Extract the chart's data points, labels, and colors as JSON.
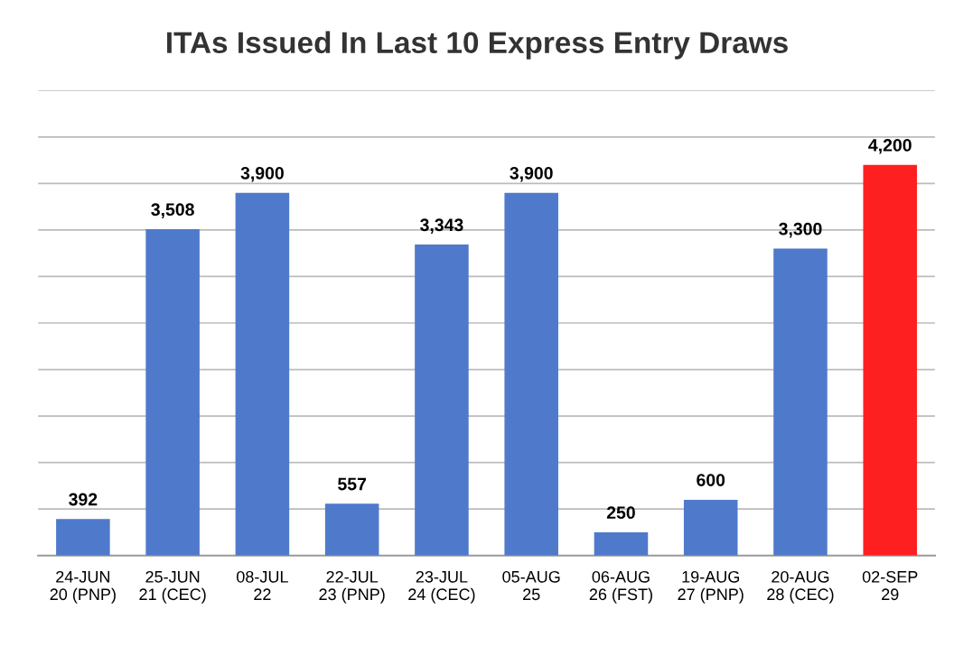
{
  "chart_data": {
    "type": "bar",
    "title": "ITAs Issued In Last 10 Express Entry Draws",
    "categories": [
      "24-JUN\n20 (PNP)",
      "25-JUN\n21 (CEC)",
      "08-JUL\n22",
      "22-JUL\n23 (PNP)",
      "23-JUL\n24 (CEC)",
      "05-AUG\n25",
      "06-AUG\n26 (FST)",
      "19-AUG\n27 (PNP)",
      "20-AUG\n28 (CEC)",
      "02-SEP\n29"
    ],
    "values": [
      392,
      3508,
      3900,
      557,
      3343,
      3900,
      250,
      600,
      3300,
      4200
    ],
    "value_labels": [
      "392",
      "3,508",
      "3,900",
      "557",
      "3,343",
      "3,900",
      "250",
      "600",
      "3,300",
      "4,200"
    ],
    "colors": [
      "#4f7acb",
      "#4f7acb",
      "#4f7acb",
      "#4f7acb",
      "#4f7acb",
      "#4f7acb",
      "#4f7acb",
      "#4f7acb",
      "#4f7acb",
      "#fe2020"
    ],
    "ylim": [
      0,
      5000
    ],
    "yticks": [
      {
        "value": 0,
        "label": null
      },
      {
        "value": 500,
        "label": null
      },
      {
        "value": 1000,
        "label": null
      },
      {
        "value": 1500,
        "label": null
      },
      {
        "value": 2000,
        "label": null
      },
      {
        "value": 2500,
        "label": null
      },
      {
        "value": 3000,
        "label": null
      },
      {
        "value": 3500,
        "label": null
      },
      {
        "value": 4000,
        "label": null
      },
      {
        "value": 4500,
        "label": null
      },
      {
        "value": 5000,
        "label": null
      }
    ],
    "grid": "y",
    "tick_labels": "x"
  }
}
